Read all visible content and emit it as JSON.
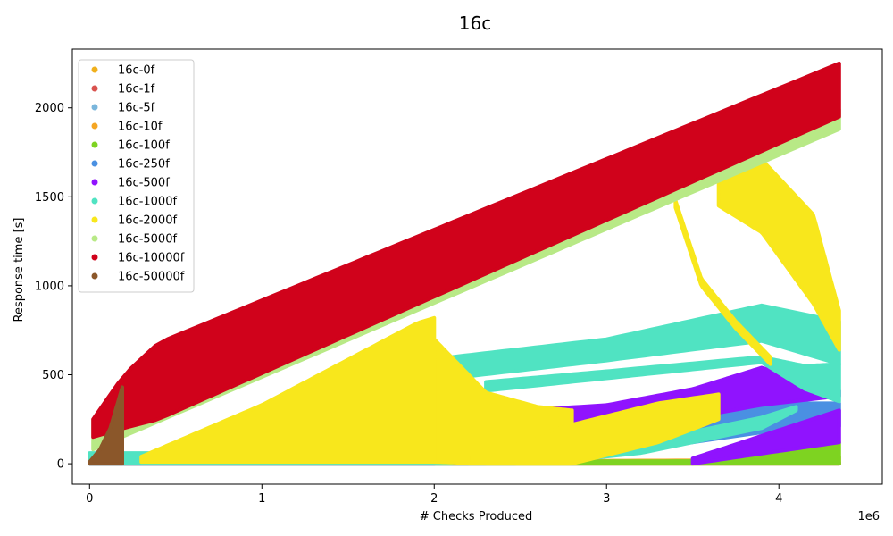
{
  "chart_data": {
    "type": "scatter",
    "title": "16c",
    "xlabel": "# Checks Produced",
    "ylabel": "Response time [s]",
    "x_offset_label": "1e6",
    "xlim": [
      -0.1,
      4.6
    ],
    "ylim": [
      -115,
      2330
    ],
    "x_ticks": [
      0,
      1,
      2,
      3,
      4
    ],
    "y_ticks": [
      0,
      500,
      1000,
      1500,
      2000
    ],
    "legend_position": "upper-left",
    "grid": false,
    "series": [
      {
        "name": "16c-0f",
        "color": "#f0b01c",
        "bands": [
          {
            "x": [
              0,
              4.35
            ],
            "lo": [
              0,
              0
            ],
            "hi": [
              3,
              3
            ]
          }
        ]
      },
      {
        "name": "16c-1f",
        "color": "#d9534f",
        "bands": [
          {
            "x": [
              0,
              4.35
            ],
            "lo": [
              0,
              0
            ],
            "hi": [
              4,
              4
            ]
          }
        ]
      },
      {
        "name": "16c-5f",
        "color": "#7ab6dc",
        "bands": [
          {
            "x": [
              0,
              4.35
            ],
            "lo": [
              0,
              0
            ],
            "hi": [
              6,
              6
            ]
          }
        ]
      },
      {
        "name": "16c-10f",
        "color": "#f5a623",
        "bands": [
          {
            "x": [
              0,
              3.9,
              4.35
            ],
            "lo": [
              0,
              0,
              0
            ],
            "hi": [
              8,
              20,
              40
            ]
          }
        ]
      },
      {
        "name": "16c-100f",
        "color": "#7ed321",
        "bands": [
          {
            "x": [
              0,
              3.5,
              4.0,
              4.35
            ],
            "lo": [
              0,
              0,
              0,
              0
            ],
            "hi": [
              10,
              15,
              80,
              120
            ]
          }
        ]
      },
      {
        "name": "16c-250f",
        "color": "#4a90e2",
        "bands": [
          {
            "x": [
              0,
              2.5,
              3.0,
              3.5,
              4.0,
              4.35
            ],
            "lo": [
              0,
              0,
              40,
              120,
              190,
              210
            ],
            "hi": [
              10,
              20,
              140,
              280,
              340,
              340
            ]
          }
        ]
      },
      {
        "name": "16c-500f",
        "color": "#9013fe",
        "bands": [
          {
            "x": [
              0,
              2.0,
              2.5,
              3.0
            ],
            "lo": [
              0,
              0,
              80,
              200
            ],
            "hi": [
              20,
              20,
              300,
              330
            ]
          },
          {
            "x": [
              3.0,
              3.5,
              3.9,
              4.35
            ],
            "lo": [
              100,
              260,
              330,
              380
            ],
            "hi": [
              330,
              420,
              540,
              410
            ]
          },
          {
            "x": [
              3.5,
              4.35
            ],
            "lo": [
              0,
              120
            ],
            "hi": [
              30,
              300
            ]
          }
        ]
      },
      {
        "name": "16c-1000f",
        "color": "#50e3c2",
        "bands": [
          {
            "x": [
              0,
              1.0,
              2.0,
              2.1
            ],
            "lo": [
              0,
              0,
              0,
              0
            ],
            "hi": [
              60,
              60,
              50,
              60
            ]
          },
          {
            "x": [
              2.1,
              3.0,
              3.9,
              4.35
            ],
            "lo": [
              480,
              580,
              690,
              560
            ],
            "hi": [
              600,
              700,
              890,
              800
            ]
          },
          {
            "x": [
              2.3,
              3.0,
              3.9
            ],
            "lo": [
              410,
              480,
              570
            ],
            "hi": [
              460,
              520,
              600
            ]
          },
          {
            "x": [
              3.9,
              4.15,
              4.35
            ],
            "lo": [
              570,
              420,
              350
            ],
            "hi": [
              600,
              550,
              560
            ]
          },
          {
            "x": [
              2.6,
              3.2,
              3.9,
              4.1
            ],
            "lo": [
              0,
              60,
              200,
              300
            ],
            "hi": [
              10,
              120,
              260,
              320
            ]
          }
        ]
      },
      {
        "name": "16c-2000f",
        "color": "#f8e71c",
        "bands": [
          {
            "x": [
              0.3,
              1.0,
              1.9,
              2.0
            ],
            "lo": [
              10,
              10,
              10,
              10
            ],
            "hi": [
              40,
              330,
              790,
              820
            ]
          },
          {
            "x": [
              2.0,
              2.3,
              2.6,
              2.8
            ],
            "lo": [
              10,
              0,
              0,
              0
            ],
            "hi": [
              700,
              400,
              320,
              300
            ]
          },
          {
            "x": [
              2.2,
              2.8,
              3.3,
              3.65
            ],
            "lo": [
              0,
              0,
              120,
              250
            ],
            "hi": [
              50,
              220,
              340,
              390
            ]
          },
          {
            "x": [
              3.65,
              3.9,
              4.2,
              4.35
            ],
            "lo": [
              1450,
              1300,
              900,
              640
            ],
            "hi": [
              1620,
              1710,
              1400,
              860
            ]
          },
          {
            "x": [
              3.4,
              3.55,
              3.75,
              3.95
            ],
            "lo": [
              1440,
              1000,
              760,
              560
            ],
            "hi": [
              1480,
              1040,
              800,
              600
            ]
          }
        ]
      },
      {
        "name": "16c-5000f",
        "color": "#b8e986",
        "bands": [
          {
            "x": [
              0.02,
              4.35
            ],
            "lo": [
              80,
              1880
            ],
            "hi": [
              250,
              1990
            ]
          }
        ]
      },
      {
        "name": "16c-10000f",
        "color": "#d0021b",
        "bands": [
          {
            "x": [
              0.02,
              0.2,
              0.4,
              4.35
            ],
            "lo": [
              150,
              200,
              250,
              1950
            ],
            "hi": [
              250,
              500,
              680,
              2250
            ]
          }
        ]
      },
      {
        "name": "16c-50000f",
        "color": "#8b572a",
        "bands": [
          {
            "x": [
              0,
              0.06,
              0.12,
              0.19
            ],
            "lo": [
              0,
              0,
              0,
              0
            ],
            "hi": [
              10,
              80,
              200,
              430
            ]
          }
        ]
      }
    ]
  }
}
